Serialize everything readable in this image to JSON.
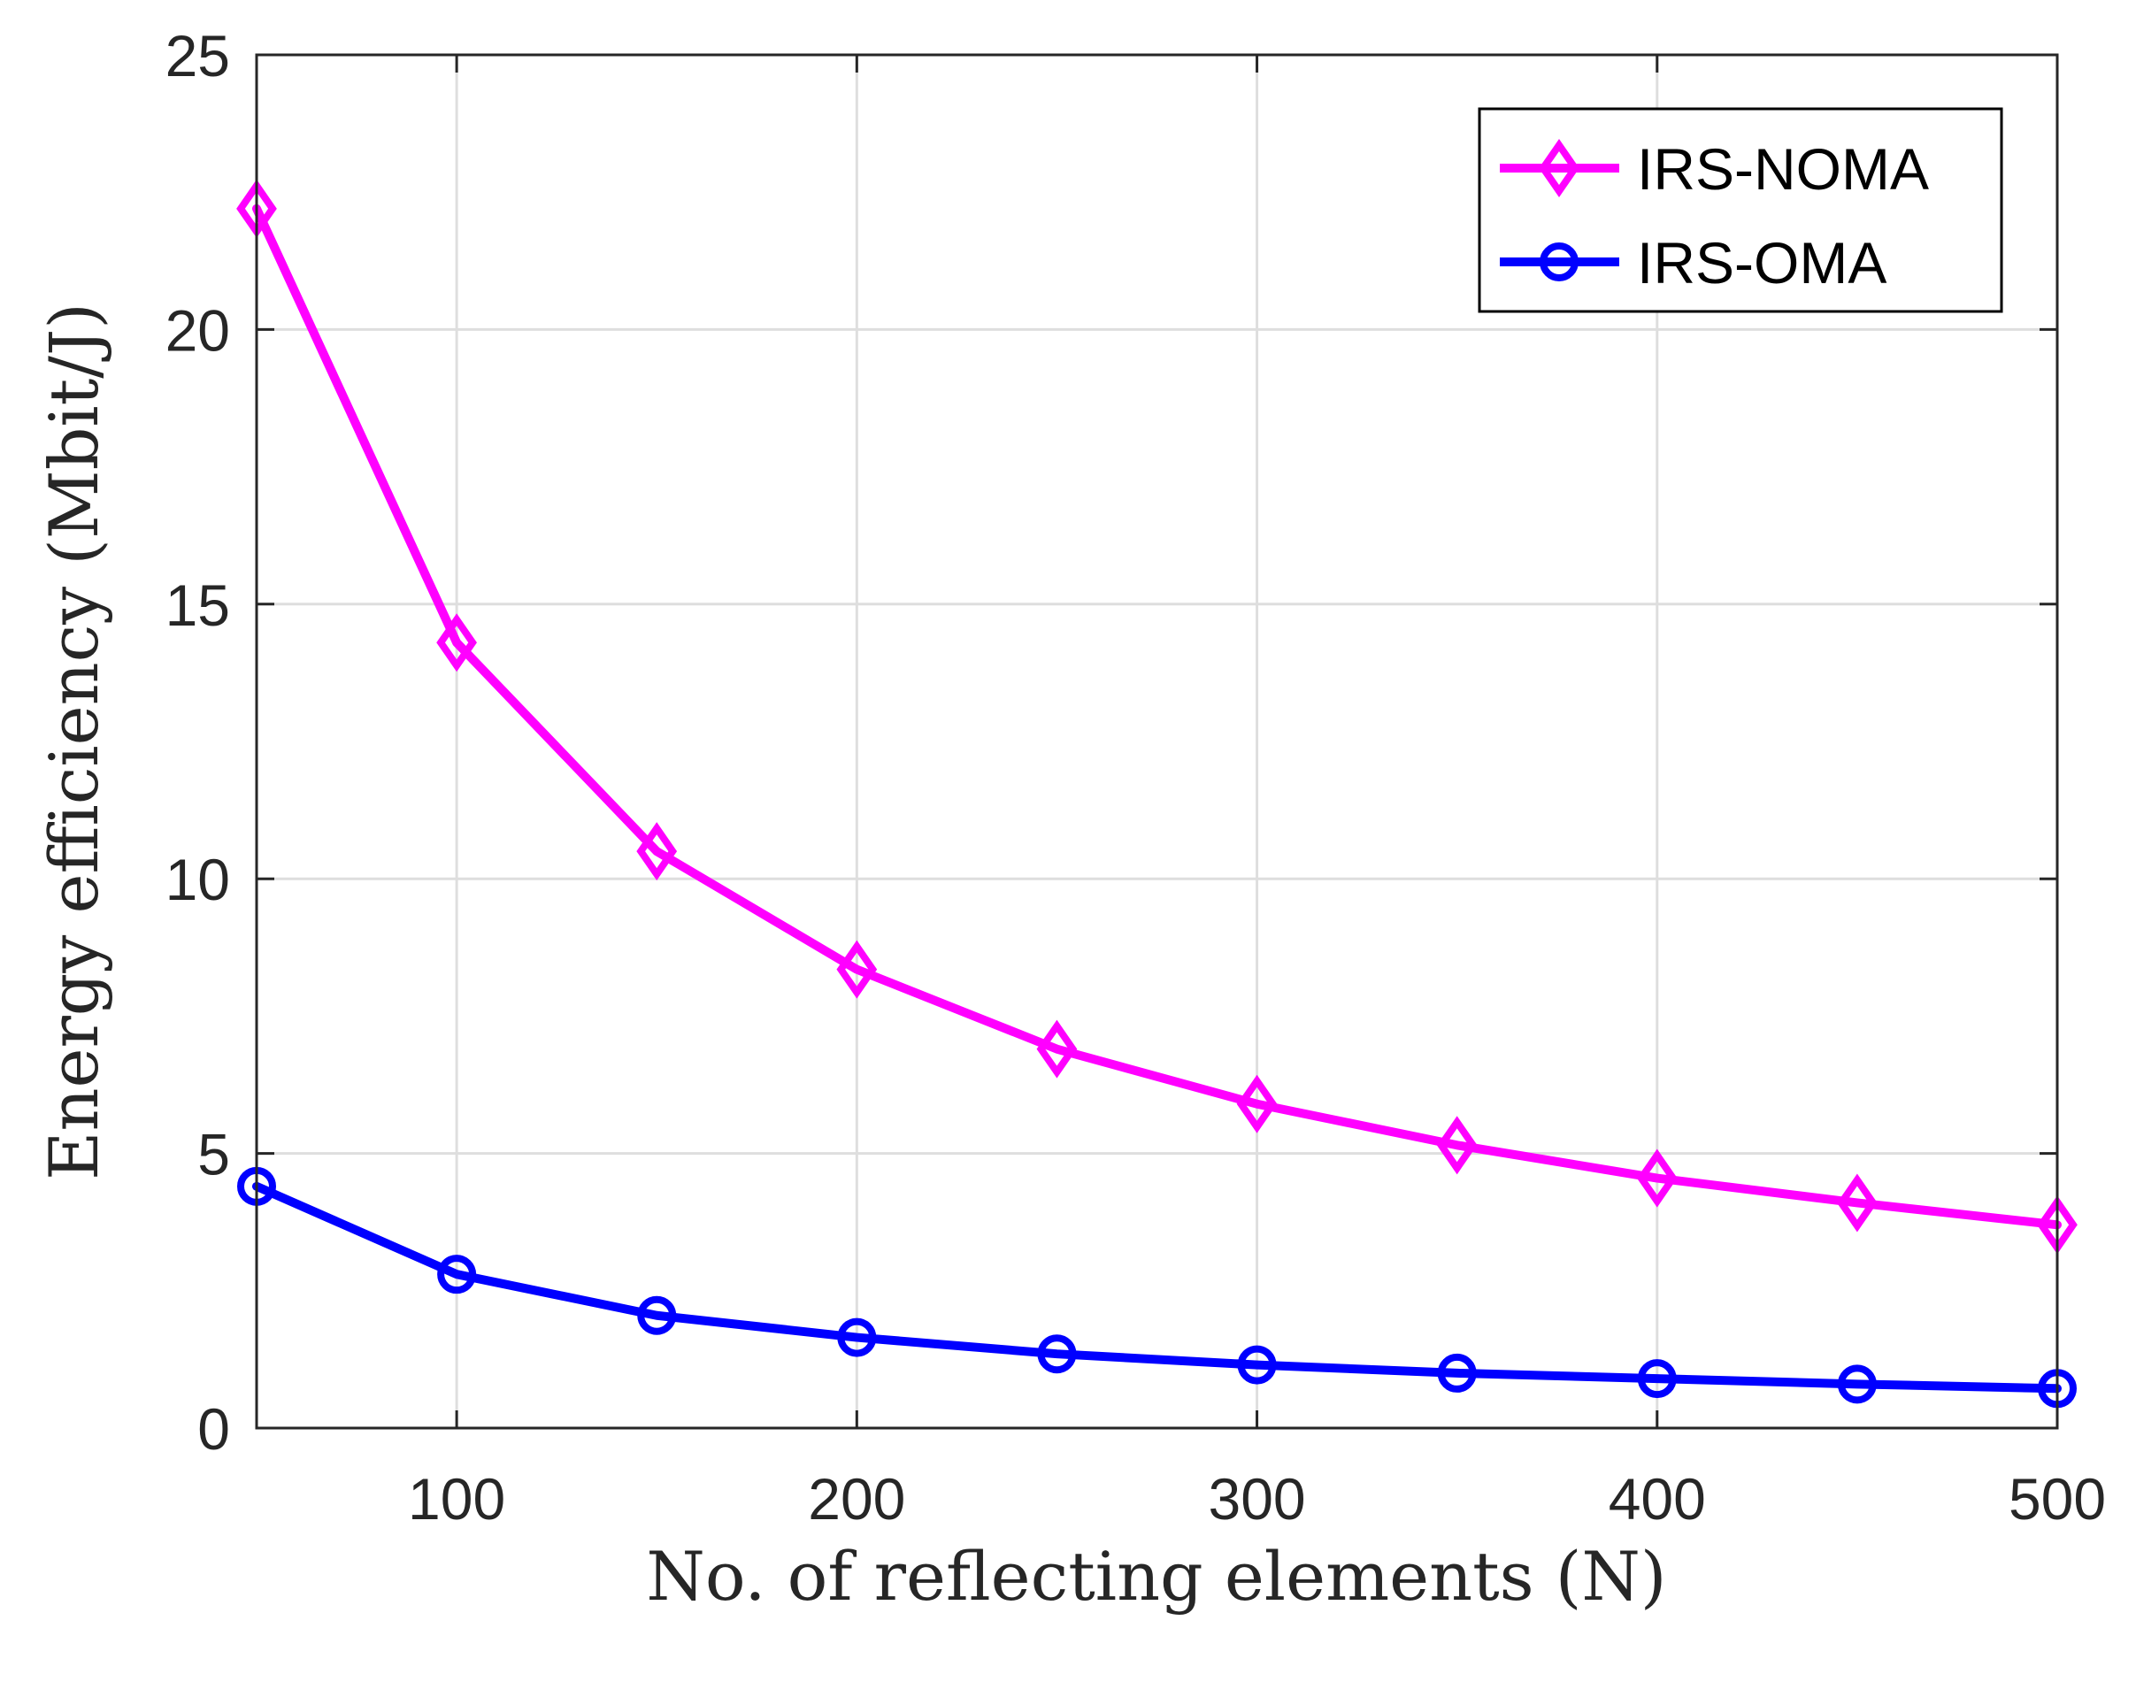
{
  "chart_data": {
    "type": "line",
    "title": "",
    "xlabel": "No. of reflecting elements (N)",
    "ylabel": "Energy efficiency (Mbit/J)",
    "xlim": [
      50,
      500
    ],
    "ylim": [
      0,
      25
    ],
    "xticks": [
      100,
      200,
      300,
      400,
      500
    ],
    "yticks": [
      0,
      5,
      10,
      15,
      20,
      25
    ],
    "grid": true,
    "legend_position": "top-right",
    "x": [
      50,
      100,
      150,
      200,
      250,
      300,
      350,
      400,
      450,
      500
    ],
    "series": [
      {
        "name": "IRS-NOMA",
        "color": "#FF00FF",
        "marker": "diamond",
        "values": [
          22.2,
          14.3,
          10.5,
          8.35,
          6.9,
          5.9,
          5.15,
          4.55,
          4.1,
          3.7
        ]
      },
      {
        "name": "IRS-OMA",
        "color": "#0000FF",
        "marker": "circle",
        "values": [
          4.4,
          2.8,
          2.05,
          1.65,
          1.35,
          1.15,
          1.0,
          0.9,
          0.8,
          0.72
        ]
      }
    ]
  }
}
